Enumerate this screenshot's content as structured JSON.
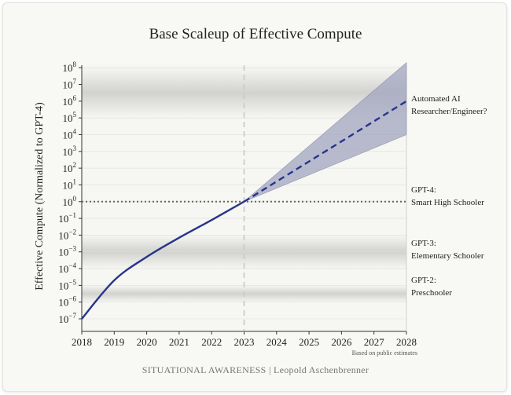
{
  "chart_data": {
    "type": "line",
    "title": "Base Scaleup of Effective Compute",
    "ylabel": "Effective Compute (Normalized to GPT-4)",
    "xlabel": "",
    "y_scale": "log",
    "xlim": [
      2018,
      2028
    ],
    "ylim": [
      1e-08,
      100000000.0
    ],
    "x_ticks": [
      "2018",
      "2019",
      "2020",
      "2021",
      "2022",
      "2023",
      "2024",
      "2025",
      "2026",
      "2027",
      "2028"
    ],
    "y_ticks": [
      {
        "base": "10",
        "exp": "8"
      },
      {
        "base": "10",
        "exp": "7"
      },
      {
        "base": "10",
        "exp": "6"
      },
      {
        "base": "10",
        "exp": "5"
      },
      {
        "base": "10",
        "exp": "4"
      },
      {
        "base": "10",
        "exp": "3"
      },
      {
        "base": "10",
        "exp": "2"
      },
      {
        "base": "10",
        "exp": "1"
      },
      {
        "base": "10",
        "exp": "0"
      },
      {
        "base": "10",
        "exp": "−1"
      },
      {
        "base": "10",
        "exp": "−2"
      },
      {
        "base": "10",
        "exp": "−3"
      },
      {
        "base": "10",
        "exp": "−4"
      },
      {
        "base": "10",
        "exp": "−5"
      },
      {
        "base": "10",
        "exp": "−6"
      },
      {
        "base": "10",
        "exp": "−7"
      }
    ],
    "series": [
      {
        "style": "solid",
        "x": [
          2018.0,
          2019.0,
          2020.0,
          2021.0,
          2022.0,
          2023.0
        ],
        "y": [
          1e-07,
          2e-05,
          0.0005,
          0.007,
          0.08,
          1
        ]
      },
      {
        "style": "dashed",
        "x": [
          2023.0,
          2028.0
        ],
        "y": [
          1,
          1000000.0
        ]
      }
    ],
    "uncertainty_band": {
      "x": [
        2023.0,
        2028.0
      ],
      "y_low": [
        1,
        10000.0
      ],
      "y_high": [
        1,
        200000000.0
      ]
    },
    "reference_lines": {
      "horizontal_dotted_y": 1,
      "vertical_dashed_x": 2023
    },
    "shaded_bands": [
      {
        "y_low": 100000.0,
        "y_high": 100000000.0
      },
      {
        "y_low": 0.0001,
        "y_high": 0.01
      },
      {
        "y_low": 1e-06,
        "y_high": 1e-05
      }
    ],
    "colors": {
      "line": "#27348b",
      "band": "#a2a6c0",
      "reference": "#666666",
      "vertical": "#c8c8c8"
    },
    "grid": true
  },
  "annotations": {
    "automated": [
      "Automated AI",
      "Researcher/Engineer?"
    ],
    "gpt4": [
      "GPT-4:",
      "Smart High Schooler"
    ],
    "gpt3": [
      "GPT-3:",
      "Elementary Schooler"
    ],
    "gpt2": [
      "GPT-2:",
      "Preschooler"
    ]
  },
  "note": "Based on public estimates",
  "footer": "SITUATIONAL AWARENESS | Leopold Aschenbrenner"
}
